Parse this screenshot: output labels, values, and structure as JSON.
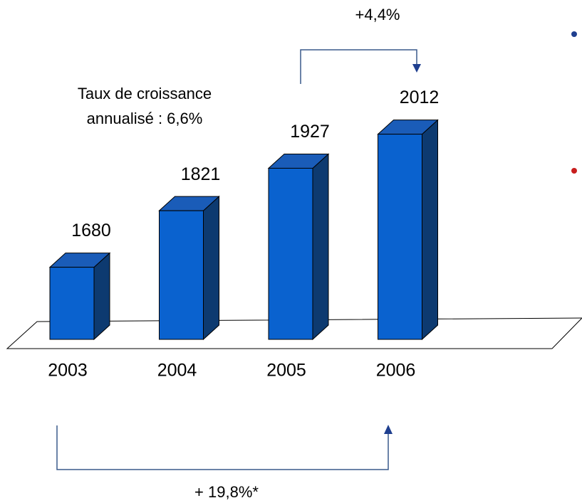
{
  "chart_data": {
    "type": "bar",
    "categories": [
      "2003",
      "2004",
      "2005",
      "2006"
    ],
    "values": [
      1680,
      1821,
      1927,
      2012
    ],
    "color": "#0a62cf",
    "ylim": [
      1500,
      2100
    ],
    "annotations": [
      "+4,4%",
      "Taux de croissance",
      "annualisé : 6,6%",
      "+ 19,8%*"
    ]
  }
}
